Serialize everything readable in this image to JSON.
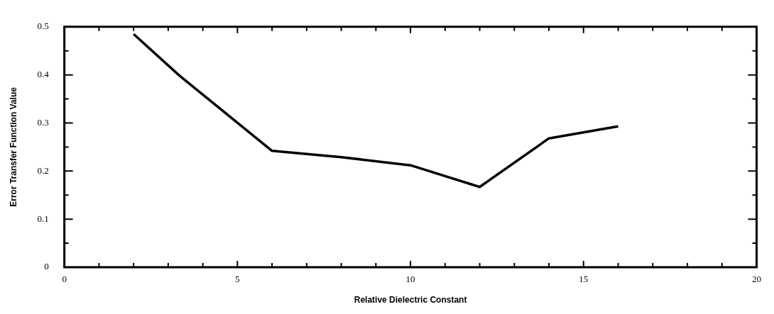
{
  "chart_data": {
    "type": "line",
    "xlabel": "Relative Dielectric Constant",
    "ylabel": "Error Transfer Function Value",
    "x": [
      2,
      3.3,
      6,
      8,
      10,
      12,
      14,
      16
    ],
    "series": [
      {
        "color": "#000000",
        "values": [
          0.485,
          0.4,
          0.242,
          0.229,
          0.212,
          0.167,
          0.268,
          0.293
        ]
      }
    ],
    "xlim": [
      0,
      20
    ],
    "ylim": [
      0,
      0.5
    ],
    "xticks": [
      0,
      {
        "value": 1,
        "label": null
      },
      {
        "value": 2,
        "label": null
      },
      {
        "value": 3,
        "label": null
      },
      {
        "value": 4,
        "label": null
      },
      5,
      {
        "value": 6,
        "label": null
      },
      {
        "value": 7,
        "label": null
      },
      {
        "value": 8,
        "label": null
      },
      {
        "value": 9,
        "label": null
      },
      10,
      {
        "value": 11,
        "label": null
      },
      {
        "value": 12,
        "label": null
      },
      {
        "value": 13,
        "label": null
      },
      {
        "value": 14,
        "label": null
      },
      15,
      {
        "value": 16,
        "label": null
      },
      {
        "value": 17,
        "label": null
      },
      {
        "value": 18,
        "label": null
      },
      {
        "value": 19,
        "label": null
      },
      20
    ],
    "yticks": [
      0,
      {
        "value": 0.05,
        "label": null
      },
      0.1,
      {
        "value": 0.15,
        "label": null
      },
      0.2,
      {
        "value": 0.25,
        "label": null
      },
      0.3,
      {
        "value": 0.35,
        "label": null
      },
      0.4,
      {
        "value": 0.45,
        "label": null
      },
      0.5
    ],
    "grid": false,
    "legend": false,
    "marker": "none",
    "line_style": "solid"
  }
}
